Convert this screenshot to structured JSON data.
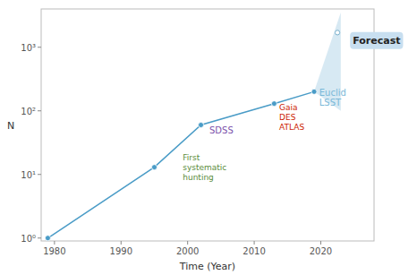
{
  "chart_data": {
    "type": "line",
    "x": [
      1979,
      1995,
      2002,
      2013,
      2019
    ],
    "values": [
      1,
      13,
      60,
      130,
      200
    ],
    "color": "#4a9cc7",
    "marker": "circle",
    "xlabel": "Time (Year)",
    "ylabel": "N",
    "xlim": [
      1978,
      2028
    ],
    "xticks": [
      1980,
      1990,
      2000,
      2010,
      2020
    ],
    "ylim": [
      0.9,
      4000
    ],
    "log": "y",
    "yticks": [
      {
        "value": 1,
        "label": "10⁰"
      },
      {
        "value": 10,
        "label": "10¹"
      },
      {
        "value": 100,
        "label": "10²"
      },
      {
        "value": 1000,
        "label": "10³"
      }
    ],
    "grid": false,
    "forecast_fan": {
      "x": [
        2019,
        2023,
        2023
      ],
      "values": [
        200,
        3500,
        100
      ],
      "color": "#b0d4e8"
    },
    "forecast_dot": {
      "x": 2022.5,
      "y": 1700,
      "color": "#7ab0cc"
    },
    "annotations": [
      {
        "text": "First\nsystematic\nhunting",
        "x": 1999,
        "y": 13,
        "color": "#5a8c3a"
      },
      {
        "text": "SDSS",
        "x": 2003,
        "y": 50,
        "color": "#7b52ab"
      },
      {
        "text": "Gaia\nDES\nATLAS",
        "x": 2013.5,
        "y": 80,
        "color": "#cc2200"
      },
      {
        "text": "Euclid\nLSST",
        "x": 2019.5,
        "y": 160,
        "color": "#7ab8d8"
      }
    ],
    "forecast_label": {
      "text": "Forecast",
      "x": 2024.8,
      "y": 1300,
      "color": "#c8dff0"
    }
  }
}
